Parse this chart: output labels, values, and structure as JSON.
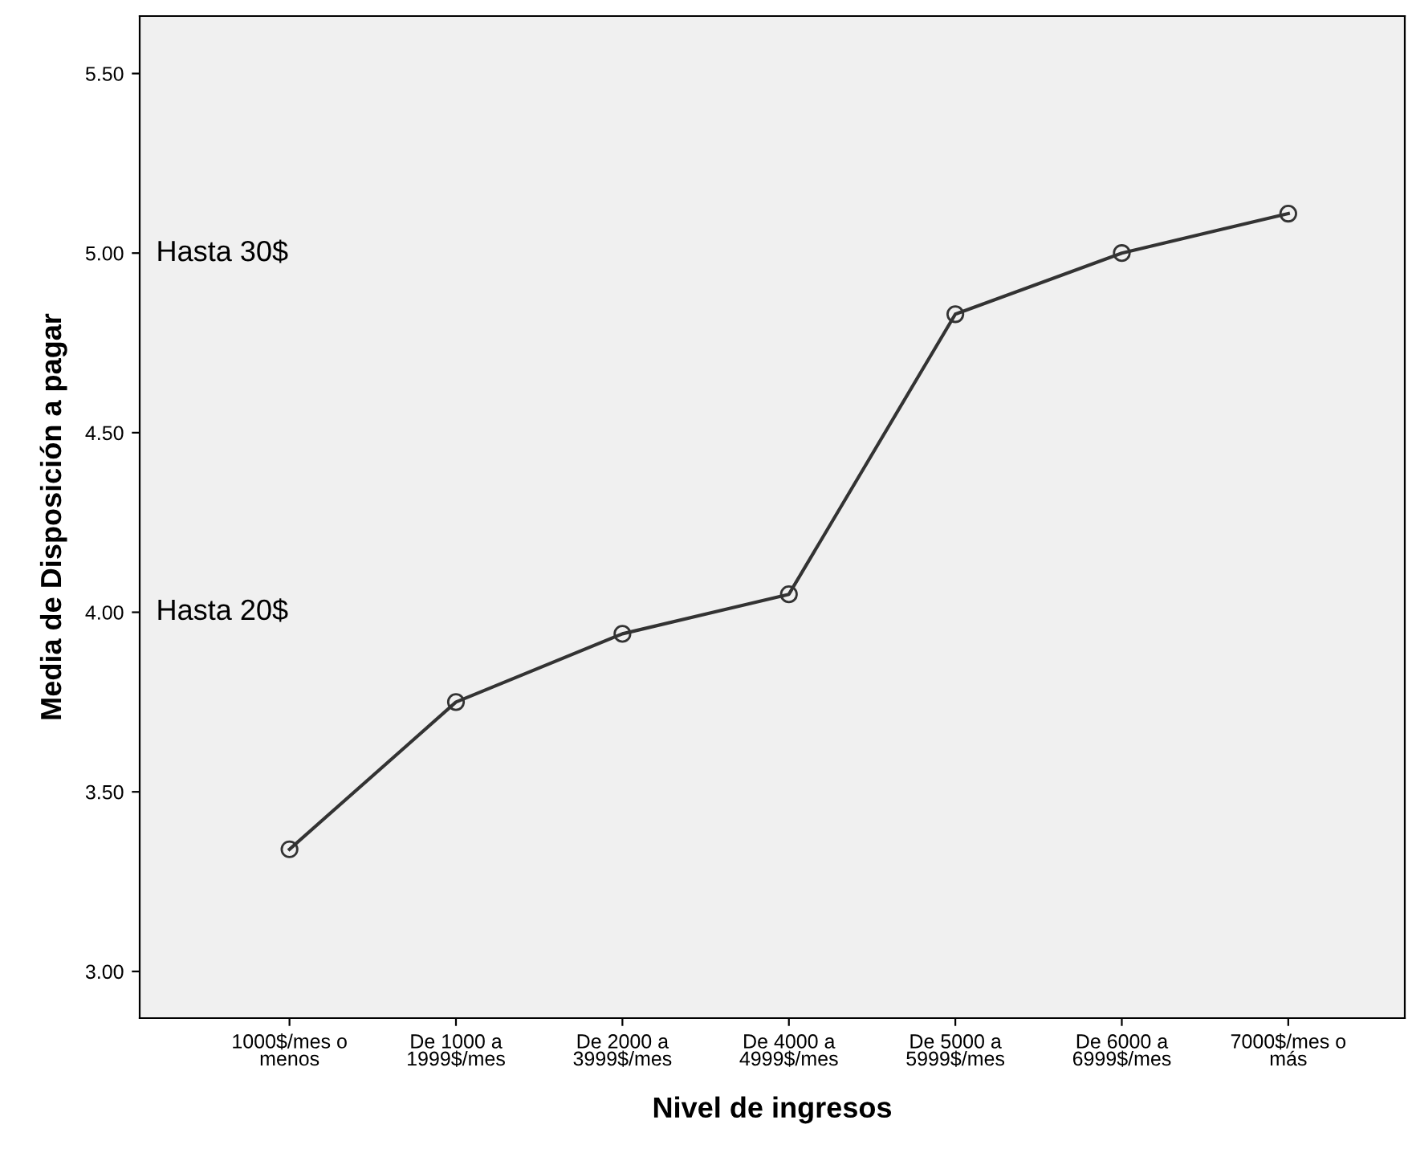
{
  "chart_data": {
    "type": "line",
    "xlabel": "Nivel de ingresos",
    "ylabel": "Media de Disposición a pagar",
    "categories": [
      "1000$/mes o\nmenos",
      "De 1000 a\n1999$/mes",
      "De 2000 a\n3999$/mes",
      "De 4000 a\n4999$/mes",
      "De 5000 a\n5999$/mes",
      "De 6000 a\n6999$/mes",
      "7000$/mes o\nmás"
    ],
    "series": [
      {
        "color": "#333333",
        "values": [
          3.34,
          3.75,
          3.94,
          4.05,
          4.83,
          5.0,
          5.11
        ]
      }
    ],
    "ylim": [
      2.87,
      5.66
    ],
    "yticks": [
      {
        "value": 3.0,
        "label": "3.00"
      },
      {
        "value": 3.5,
        "label": "3.50"
      },
      {
        "value": 4.0,
        "label": "4.00"
      },
      {
        "value": 4.5,
        "label": "4.50"
      },
      {
        "value": 5.0,
        "label": "5.00"
      },
      {
        "value": 5.5,
        "label": "5.50"
      }
    ],
    "annotations": [
      "Hasta 30$",
      "Hasta 20$"
    ],
    "marker": "circle",
    "line_style": "solid",
    "grid": false,
    "legend": false
  }
}
